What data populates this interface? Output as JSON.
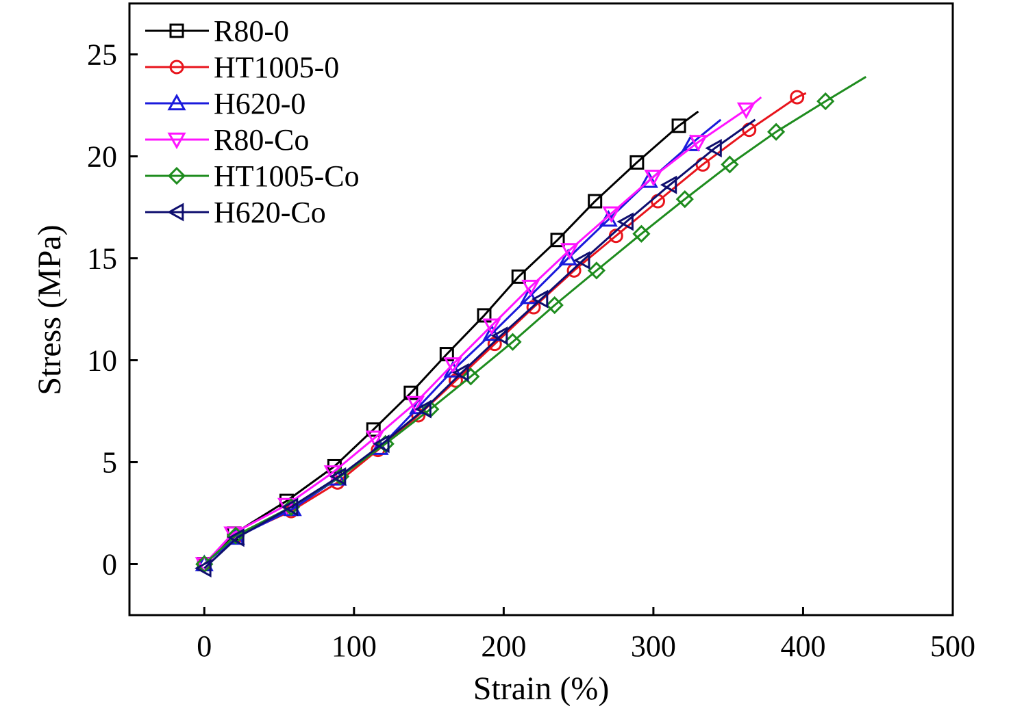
{
  "chart_data": {
    "type": "line",
    "title": "",
    "xlabel": "Strain (%)",
    "ylabel": "Stress (MPa)",
    "xlim": [
      -50,
      500
    ],
    "ylim": [
      -2.5,
      27.5
    ],
    "x_ticks": [
      0,
      100,
      200,
      300,
      400,
      500
    ],
    "y_ticks": [
      0,
      5,
      10,
      15,
      20,
      25
    ],
    "grid": false,
    "legend_position": "top-left",
    "series": [
      {
        "name": "R80-0",
        "color": "#000000",
        "marker": "square",
        "x": [
          0,
          20,
          55,
          87,
          113,
          138,
          162,
          187,
          210,
          236,
          261,
          289,
          317,
          330
        ],
        "y": [
          0,
          1.5,
          3.1,
          4.8,
          6.6,
          8.4,
          10.3,
          12.2,
          14.1,
          15.9,
          17.8,
          19.7,
          21.5,
          22.2
        ],
        "marker_x": [
          0,
          20,
          55,
          87,
          113,
          138,
          162,
          187,
          210,
          236,
          261,
          289,
          317
        ],
        "marker_y": [
          0,
          1.5,
          3.1,
          4.8,
          6.6,
          8.4,
          10.3,
          12.2,
          14.1,
          15.9,
          17.8,
          19.7,
          21.5
        ]
      },
      {
        "name": "HT1005-0",
        "color": "#e8141c",
        "marker": "circle",
        "x": [
          0,
          22,
          58,
          89,
          116,
          143,
          168,
          194,
          220,
          247,
          275,
          303,
          333,
          364,
          396,
          402
        ],
        "y": [
          0,
          1.4,
          2.6,
          4.0,
          5.6,
          7.3,
          9.0,
          10.8,
          12.6,
          14.4,
          16.1,
          17.8,
          19.6,
          21.3,
          22.9,
          23.1
        ],
        "marker_x": [
          0,
          22,
          58,
          89,
          116,
          143,
          168,
          194,
          220,
          247,
          275,
          303,
          333,
          364,
          396
        ],
        "marker_y": [
          0,
          1.4,
          2.6,
          4.0,
          5.6,
          7.3,
          9.0,
          10.8,
          12.6,
          14.4,
          16.1,
          17.8,
          19.6,
          21.3,
          22.9
        ]
      },
      {
        "name": "H620-0",
        "color": "#1a1adc",
        "marker": "triangle-up",
        "x": [
          0,
          21,
          59,
          89,
          117,
          143,
          166,
          192,
          217,
          243,
          270,
          297,
          325,
          345
        ],
        "y": [
          0,
          1.3,
          2.7,
          4.2,
          5.7,
          7.7,
          9.5,
          11.3,
          13.1,
          15.0,
          16.9,
          18.8,
          20.6,
          21.8
        ],
        "marker_x": [
          0,
          21,
          59,
          89,
          117,
          143,
          166,
          192,
          217,
          243,
          270,
          297,
          325
        ],
        "marker_y": [
          0,
          1.3,
          2.7,
          4.2,
          5.7,
          7.7,
          9.5,
          11.3,
          13.1,
          15.0,
          16.9,
          18.8,
          20.6
        ]
      },
      {
        "name": "R80-Co",
        "color": "#ff14ff",
        "marker": "triangle-down",
        "x": [
          0,
          19,
          55,
          86,
          114,
          141,
          166,
          192,
          218,
          244,
          272,
          300,
          330,
          362,
          372
        ],
        "y": [
          0,
          1.5,
          2.9,
          4.5,
          6.2,
          7.9,
          9.8,
          11.7,
          13.6,
          15.4,
          17.2,
          19.0,
          20.7,
          22.3,
          22.9
        ],
        "marker_x": [
          0,
          19,
          55,
          86,
          114,
          141,
          166,
          192,
          218,
          244,
          272,
          300,
          330,
          362
        ],
        "marker_y": [
          0,
          1.5,
          2.9,
          4.5,
          6.2,
          7.9,
          9.8,
          11.7,
          13.6,
          15.4,
          17.2,
          19.0,
          20.7,
          22.3
        ]
      },
      {
        "name": "HT1005-Co",
        "color": "#1e8c1e",
        "marker": "diamond",
        "x": [
          0,
          21,
          58,
          91,
          121,
          151,
          178,
          206,
          234,
          262,
          292,
          321,
          351,
          382,
          415,
          442
        ],
        "y": [
          0,
          1.4,
          2.8,
          4.3,
          5.9,
          7.6,
          9.2,
          10.9,
          12.7,
          14.4,
          16.2,
          17.9,
          19.6,
          21.2,
          22.7,
          23.9
        ],
        "marker_x": [
          0,
          21,
          58,
          91,
          121,
          151,
          178,
          206,
          234,
          262,
          292,
          321,
          351,
          382,
          415
        ],
        "marker_y": [
          0,
          1.4,
          2.8,
          4.3,
          5.9,
          7.6,
          9.2,
          10.9,
          12.7,
          14.4,
          16.2,
          17.9,
          19.6,
          21.2,
          22.7
        ]
      },
      {
        "name": "H620-Co",
        "color": "#0e0e6e",
        "marker": "triangle-left",
        "x": [
          0,
          22,
          58,
          90,
          119,
          147,
          172,
          198,
          225,
          253,
          282,
          311,
          341,
          368
        ],
        "y": [
          -0.2,
          1.3,
          2.8,
          4.3,
          5.9,
          7.6,
          9.4,
          11.2,
          13.0,
          14.9,
          16.8,
          18.6,
          20.4,
          21.8
        ],
        "marker_x": [
          0,
          22,
          58,
          90,
          119,
          147,
          172,
          198,
          225,
          253,
          282,
          311,
          341
        ],
        "marker_y": [
          -0.2,
          1.3,
          2.8,
          4.3,
          5.9,
          7.6,
          9.4,
          11.2,
          13.0,
          14.9,
          16.8,
          18.6,
          20.4
        ]
      }
    ]
  }
}
